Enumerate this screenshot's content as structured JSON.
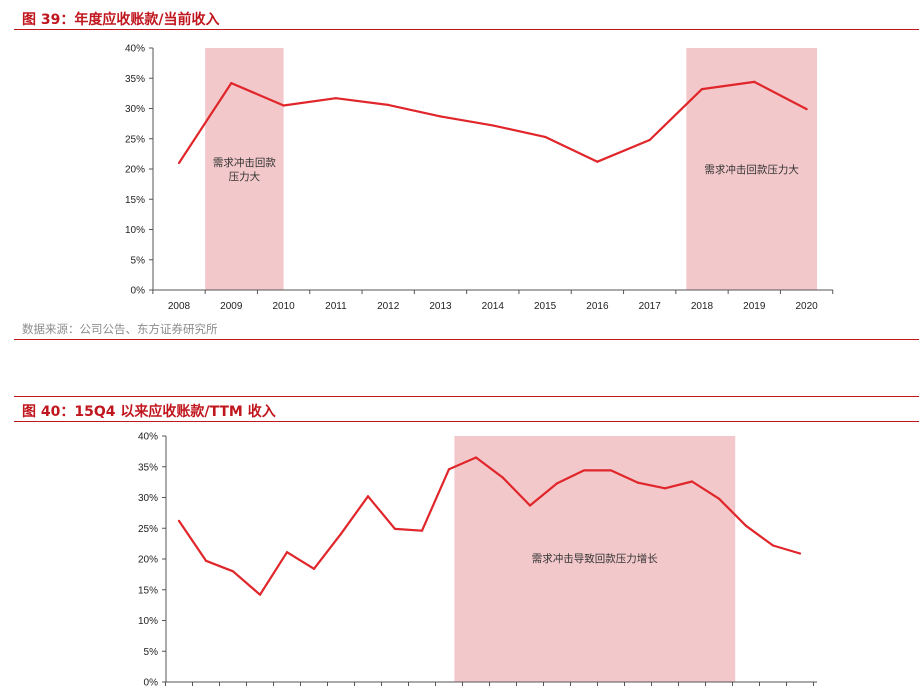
{
  "colors": {
    "title": "#c0161e",
    "line": "#e0262a",
    "shade": "#f2c8ca",
    "axis": "#555555",
    "text": "#222222",
    "source": "#8c8c8c"
  },
  "figure1": {
    "title": "图 39：年度应收账款/当前收入"
  },
  "figure2": {
    "title": "图 40：15Q4 以来应收账款/TTM 收入"
  },
  "source": "数据来源：公司公告、东方证券研究所",
  "chart_data": [
    {
      "type": "line",
      "title": "图 39：年度应收账款/当前收入",
      "categories": [
        "2008",
        "2009",
        "2010",
        "2011",
        "2012",
        "2013",
        "2014",
        "2015",
        "2016",
        "2017",
        "2018",
        "2019",
        "2020"
      ],
      "values": [
        0.21,
        0.342,
        0.305,
        0.317,
        0.306,
        0.287,
        0.272,
        0.253,
        0.212,
        0.248,
        0.332,
        0.344,
        0.299
      ],
      "ylim": [
        0,
        0.4
      ],
      "yticks": [
        "0%",
        "5%",
        "10%",
        "15%",
        "20%",
        "25%",
        "30%",
        "35%",
        "40%"
      ],
      "grid": false,
      "shaded_regions": [
        {
          "from": 0.5,
          "to": 2.0,
          "label_lines": [
            "需求冲击回款",
            "压力大"
          ]
        },
        {
          "from": 9.7,
          "to": 12.2,
          "label_lines": [
            "需求冲击回款压力大"
          ]
        }
      ]
    },
    {
      "type": "line",
      "title": "图 40：15Q4 以来应收账款/TTM 收入",
      "values": [
        0.262,
        0.197,
        0.18,
        0.142,
        0.211,
        0.184,
        0.241,
        0.302,
        0.249,
        0.246,
        0.346,
        0.365,
        0.332,
        0.287,
        0.323,
        0.344,
        0.344,
        0.324,
        0.315,
        0.326,
        0.298,
        0.254,
        0.222,
        0.209
      ],
      "ylim": [
        0,
        0.4
      ],
      "yticks": [
        "0%",
        "5%",
        "10%",
        "15%",
        "20%",
        "25%",
        "30%",
        "35%",
        "40%"
      ],
      "grid": false,
      "shaded_regions": [
        {
          "from": 10.2,
          "to": 20.6,
          "label_lines": [
            "需求冲击导致回款压力增长"
          ]
        }
      ]
    }
  ]
}
